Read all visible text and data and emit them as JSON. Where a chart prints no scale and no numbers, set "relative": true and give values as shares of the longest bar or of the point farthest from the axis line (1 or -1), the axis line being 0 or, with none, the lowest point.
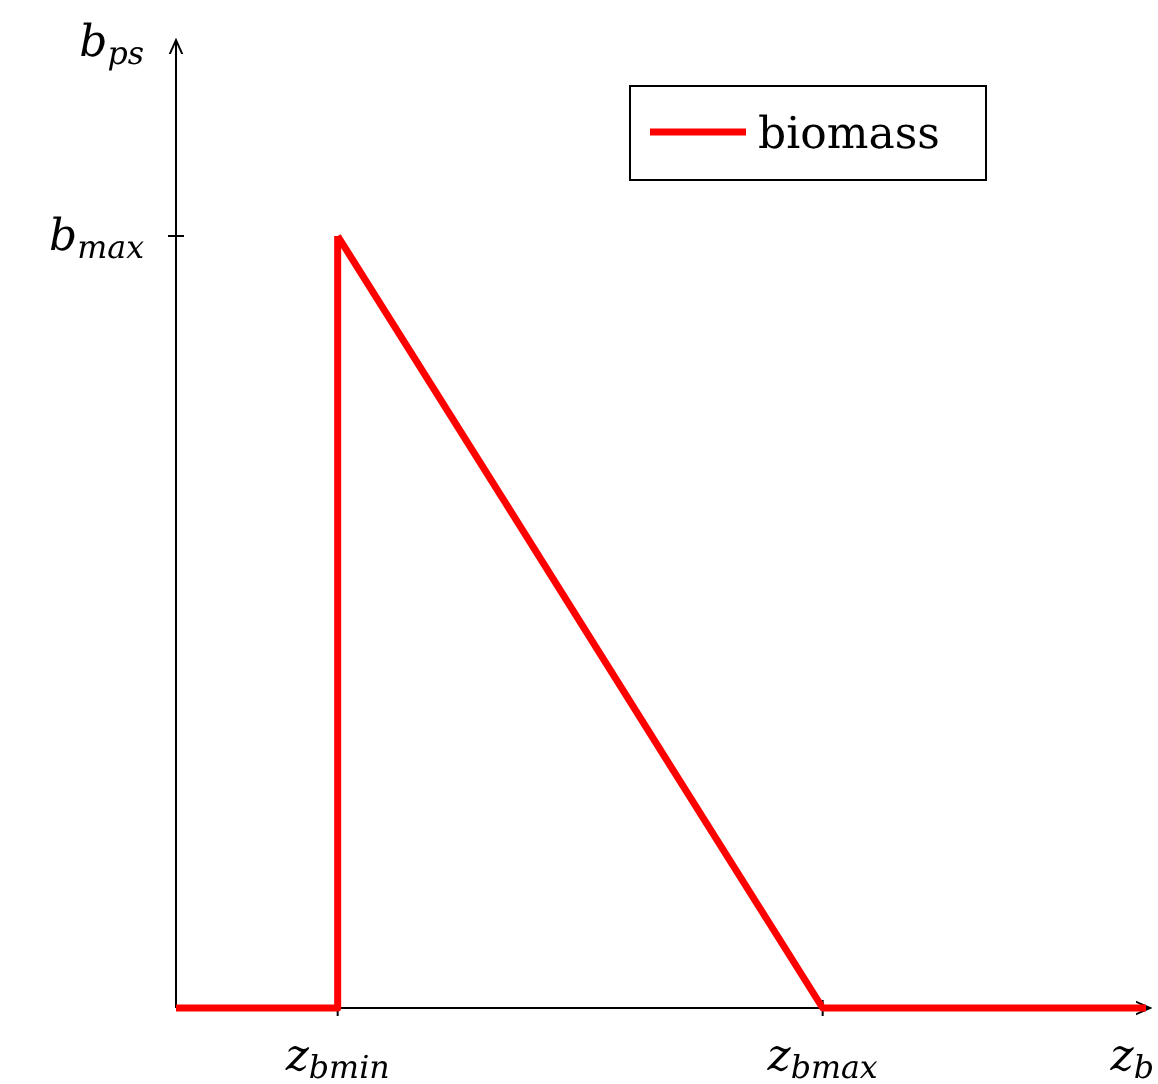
{
  "chart_data": {
    "type": "line",
    "xlabel": "z$_{b}$",
    "ylabel": "b$_{ps}$",
    "relative": true,
    "categories": [
      null,
      "z$_{bmin}$",
      null,
      null,
      "z$_{bmax}$",
      null,
      null
    ],
    "series": [
      {
        "name": "biomass",
        "color": "#ff0000",
        "values": [
          null,
          1,
          0.667,
          0.333,
          0,
          0,
          0
        ]
      },
      {
        "type": "step",
        "color": "#ff0000",
        "values": [
          0,
          1,
          null,
          null,
          null,
          null,
          null
        ]
      }
    ],
    "annotations": [
      "b$_{max}$"
    ],
    "legend": "top right"
  }
}
